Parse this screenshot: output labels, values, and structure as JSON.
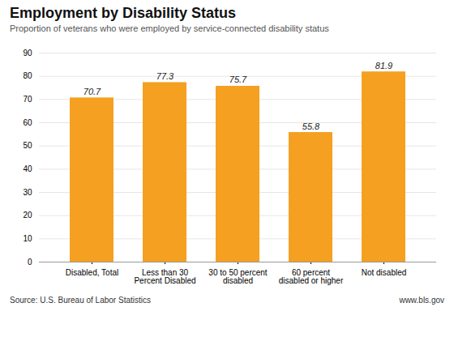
{
  "chart_data": {
    "type": "bar",
    "title": "Employment by Disability Status",
    "subtitle": "Proportion of veterans who were employed by service-connected disability status",
    "categories": [
      "Disabled, Total",
      "Less than 30\nPercent Disabled",
      "30 to 50 percent\ndisabled",
      "60 percent\ndisabled or higher",
      "Not disabled"
    ],
    "values": [
      70.7,
      77.3,
      75.7,
      55.8,
      81.9
    ],
    "color": "#F5A020",
    "ylim": [
      0,
      90
    ],
    "yticks": [
      0,
      10,
      20,
      30,
      40,
      50,
      60,
      70,
      80,
      90
    ],
    "grid": true,
    "data_labels": true,
    "annotations": [
      "Source: U.S. Bureau of Labor Statistics",
      "www.bls.gov"
    ]
  }
}
